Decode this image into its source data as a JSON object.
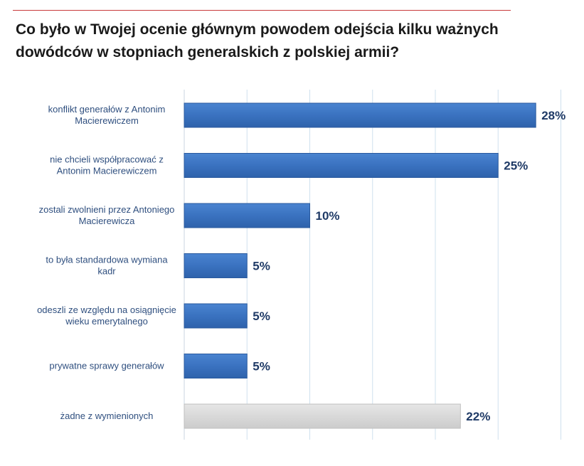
{
  "title_lines": [
    "Co było w Twojej ocenie głównym powodem odejścia kilku ważnych",
    "dowódców w stopniach generalskich z polskiej armii?"
  ],
  "colors": {
    "bar_primary": "#3a72c0",
    "bar_primary_edge": "#2a5a9e",
    "bar_other": "#d9d9d9",
    "bar_other_edge": "#bfbfbf",
    "rule": "#c8393b"
  },
  "chart_data": {
    "type": "bar",
    "orientation": "horizontal",
    "title": "Co było w Twojej ocenie głównym powodem odejścia kilku ważnych dowódców w stopniach generalskich z polskiej armii?",
    "xlim": [
      0,
      30
    ],
    "grid": true,
    "categories": [
      [
        "konflikt generałów z Antonim",
        "Macierewiczem"
      ],
      [
        "nie chcieli współpracować z",
        "Antonim Macierewiczem"
      ],
      [
        "zostali zwolnieni przez Antoniego",
        "Macierewicza"
      ],
      [
        "to była standardowa wymiana",
        "kadr"
      ],
      [
        "odeszli ze względu na osiągnięcie",
        "wieku emerytalnego"
      ],
      [
        "prywatne sprawy generałów"
      ],
      [
        "żadne z wymienionych"
      ]
    ],
    "values": [
      28,
      25,
      10,
      5,
      5,
      5,
      22
    ],
    "value_labels": [
      "28%",
      "25%",
      "10%",
      "5%",
      "5%",
      "5%",
      "22%"
    ],
    "bar_styles": [
      "primary",
      "primary",
      "primary",
      "primary",
      "primary",
      "primary",
      "other"
    ]
  }
}
